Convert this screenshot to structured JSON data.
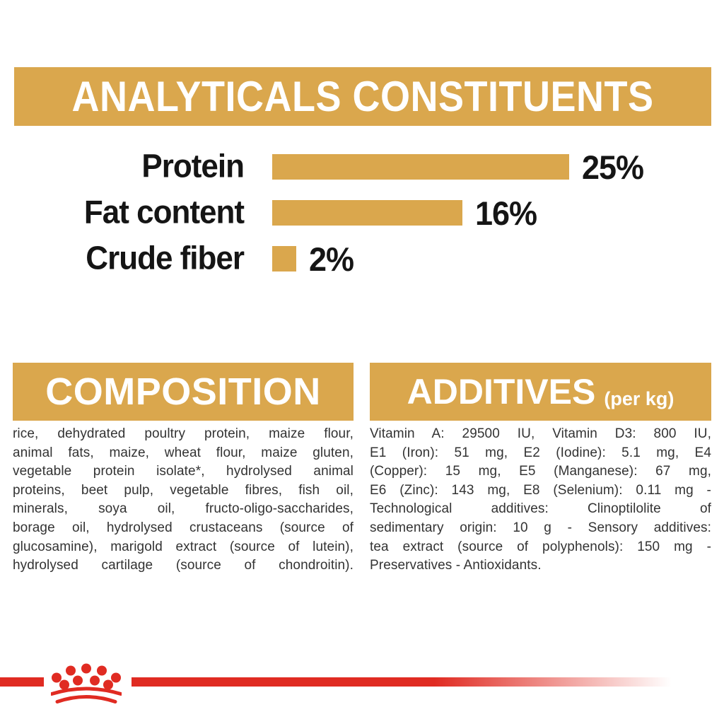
{
  "analyticals": {
    "title": "ANALYTICALS CONSTITUENTS"
  },
  "chart_data": {
    "type": "bar",
    "orientation": "horizontal",
    "categories": [
      "Protein",
      "Fat content",
      "Crude fiber"
    ],
    "values": [
      25,
      16,
      2
    ],
    "value_labels": [
      "25%",
      "16%",
      "2%"
    ],
    "unit": "%",
    "xlim": [
      0,
      25
    ],
    "bar_color": "#DAA74D",
    "grid": false,
    "legend": false
  },
  "composition": {
    "title": "COMPOSITION",
    "lines": [
      "rice, dehydrated poultry protein, maize flour,",
      "animal fats, maize, wheat flour, maize gluten,",
      "vegetable protein isolate*, hydrolysed animal",
      "proteins, beet pulp, vegetable fibres, fish oil,",
      "minerals, soya oil, fructo-oligo-saccharides,",
      "borage oil, hydrolysed crustaceans (source of",
      "glucosamine), marigold extract (source of lutein),",
      "hydrolysed cartilage (source of chondroitin)."
    ]
  },
  "additives": {
    "title": "ADDITIVES",
    "title_suffix": "(per kg)",
    "lines": [
      "Vitamin A: 29500 IU, Vitamin D3: 800 IU,",
      "E1 (Iron): 51 mg, E2 (Iodine): 5.1 mg, E4",
      "(Copper): 15 mg, E5 (Manganese): 67 mg,",
      "E6 (Zinc): 143 mg, E8 (Selenium): 0.11 mg -",
      "Technological additives: Clinoptilolite of",
      "sedimentary origin: 10 g - Sensory additives:",
      "tea extract (source of polyphenols): 150 mg -",
      "Preservatives - Antioxidants."
    ]
  },
  "footer": {
    "logo_icon": "royal-canin-crown-icon"
  },
  "colors": {
    "gold": "#DAA74D",
    "red": "#E02B22",
    "text": "#333333",
    "banner_text": "#FFFFFF"
  }
}
